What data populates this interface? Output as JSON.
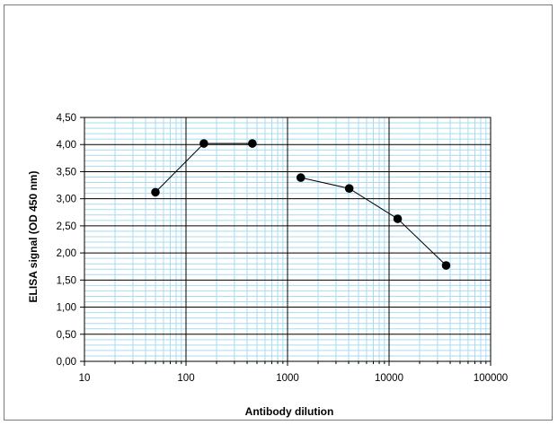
{
  "chart_data": {
    "type": "line",
    "xlabel": "Antibody dilution",
    "ylabel": "ELISA signal (OD 450 nm)",
    "x_scale": "log",
    "xlim": [
      10,
      100000
    ],
    "ylim": [
      0,
      4.5
    ],
    "x_ticks": [
      "10",
      "100",
      "1000",
      "10000",
      "100000"
    ],
    "y_ticks": [
      "0,00",
      "0,50",
      "1,00",
      "1,50",
      "2,00",
      "2,50",
      "3,00",
      "3,50",
      "4,00",
      "4,50"
    ],
    "grid": true,
    "legend": false,
    "line_color": "#000000",
    "marker_color": "#000000",
    "minor_grid_color": "#a9dcf0",
    "major_grid_color": "#000000",
    "series": [
      {
        "points": [
          [
            50,
            3.12
          ],
          [
            150,
            4.02
          ],
          [
            450,
            4.02
          ]
        ]
      },
      {
        "points": [
          [
            1350,
            3.39
          ],
          [
            4050,
            3.19
          ],
          [
            12150,
            2.63
          ],
          [
            36450,
            1.77
          ]
        ]
      }
    ]
  }
}
